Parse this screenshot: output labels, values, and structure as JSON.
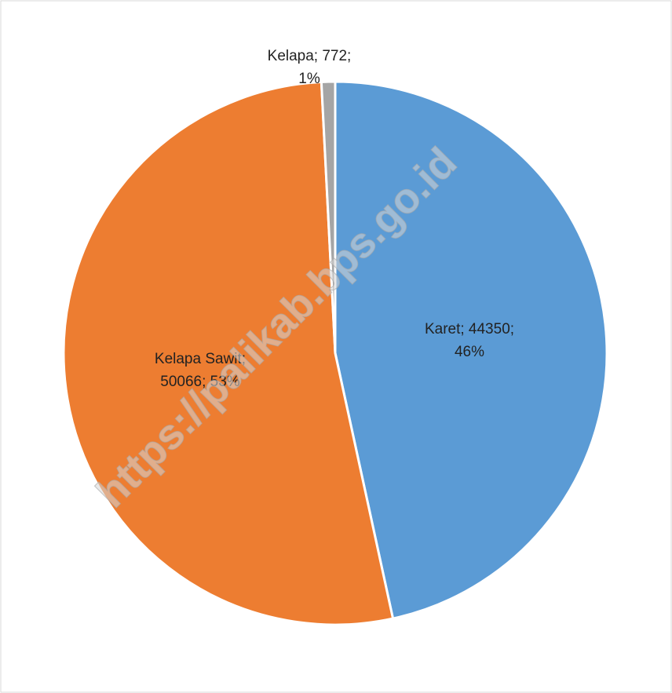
{
  "chart_data": {
    "type": "pie",
    "values": [
      44350,
      50066,
      772
    ],
    "value_labels": [
      [
        "Karet; 44350;",
        "46%"
      ],
      [
        "Kelapa Sawit;",
        "50066; 53%"
      ],
      [
        "Kelapa; 772;",
        "1%"
      ]
    ],
    "colors": [
      "#5b9bd5",
      "#ed7d31",
      "#a5a5a5"
    ],
    "watermark": "https://palikab.bps.go.id"
  }
}
